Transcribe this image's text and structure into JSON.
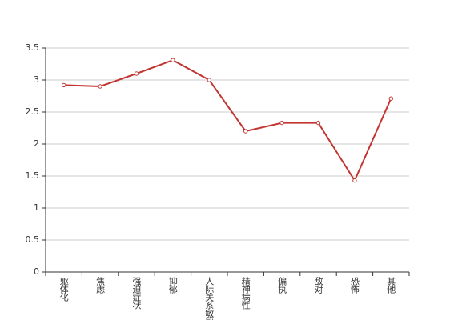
{
  "chart_data": {
    "type": "line",
    "categories": [
      "躯体化",
      "焦虑",
      "强迫症状",
      "抑郁",
      "人际关系敏感",
      "精神病性",
      "偏执",
      "敌对",
      "恐怖",
      "其他"
    ],
    "values": [
      2.92,
      2.9,
      3.1,
      3.31,
      3.0,
      2.2,
      2.33,
      2.33,
      1.43,
      2.71
    ],
    "color": "#c23531",
    "ylim": [
      0,
      3.5
    ],
    "yticks": [
      0,
      0.5,
      1,
      1.5,
      2,
      2.5,
      3,
      3.5
    ],
    "grid": true
  }
}
